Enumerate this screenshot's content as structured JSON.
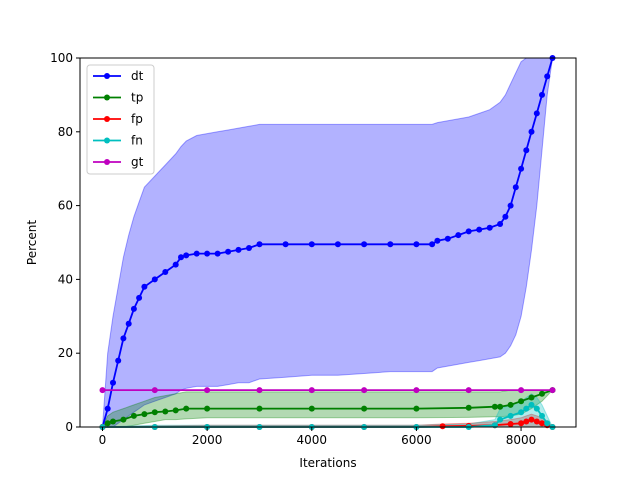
{
  "chart_data": {
    "type": "line",
    "title": "",
    "xlabel": "Iterations",
    "ylabel": "Percent",
    "xlim": [
      -430,
      9050
    ],
    "ylim": [
      0,
      100
    ],
    "xticks": [
      0,
      2000,
      4000,
      6000,
      8000
    ],
    "yticks": [
      0,
      20,
      40,
      60,
      80,
      100
    ],
    "legend_position": "top-left",
    "grid": false,
    "series": [
      {
        "name": "dt",
        "color": "#0000ff",
        "x": [
          0,
          100,
          200,
          300,
          400,
          500,
          600,
          700,
          800,
          1000,
          1200,
          1400,
          1500,
          1600,
          1800,
          2000,
          2200,
          2400,
          2600,
          2800,
          3000,
          3500,
          4000,
          4500,
          5000,
          5500,
          6000,
          6300,
          6400,
          6600,
          6800,
          7000,
          7200,
          7400,
          7600,
          7700,
          7800,
          7900,
          8000,
          8100,
          8200,
          8300,
          8400,
          8500,
          8600
        ],
        "y": [
          0,
          5,
          12,
          18,
          24,
          28,
          32,
          35,
          38,
          40,
          42,
          44,
          46,
          46.5,
          47,
          47,
          47,
          47.5,
          48,
          48.5,
          49.5,
          49.5,
          49.5,
          49.5,
          49.5,
          49.5,
          49.5,
          49.5,
          50.5,
          51,
          52,
          53,
          53.5,
          54,
          55,
          57,
          60,
          65,
          70,
          75,
          80,
          85,
          90,
          95,
          100
        ],
        "band_lower": [
          0,
          0,
          0,
          1,
          2,
          3,
          4,
          5,
          6,
          7,
          8,
          9,
          10,
          10.5,
          11,
          11,
          11,
          11.5,
          12,
          12,
          13,
          13.5,
          14,
          14,
          14.5,
          15,
          15,
          15,
          16,
          16.5,
          17,
          17.5,
          18,
          18.5,
          19,
          20,
          22,
          25,
          30,
          38,
          48,
          60,
          75,
          90,
          100
        ],
        "band_upper": [
          0,
          20,
          30,
          38,
          46,
          52,
          57,
          61,
          65,
          68,
          71,
          74,
          76,
          77.5,
          79,
          79.5,
          80,
          80.5,
          81,
          81.5,
          82,
          82,
          82,
          82,
          82,
          82,
          82,
          82,
          82.5,
          83,
          83.5,
          84,
          85,
          86,
          88,
          90,
          93,
          96,
          99,
          100,
          100,
          100,
          100,
          100,
          100
        ]
      },
      {
        "name": "tp",
        "color": "#008000",
        "x": [
          0,
          100,
          200,
          400,
          600,
          800,
          1000,
          1200,
          1400,
          1600,
          2000,
          3000,
          4000,
          5000,
          6000,
          7000,
          7500,
          7600,
          7800,
          8000,
          8200,
          8400,
          8600
        ],
        "y": [
          0,
          1,
          1.5,
          2,
          3,
          3.5,
          4,
          4.2,
          4.5,
          5,
          5,
          5,
          5,
          5,
          5,
          5.2,
          5.5,
          5.5,
          6,
          7,
          8,
          9,
          10
        ],
        "band_lower": [
          0,
          0,
          0,
          0,
          0.5,
          1,
          1.5,
          2,
          2,
          2.2,
          2.5,
          2.5,
          2.5,
          2.5,
          2.5,
          2.6,
          2.8,
          2.8,
          3,
          3.5,
          5,
          7,
          10
        ],
        "band_upper": [
          0,
          3,
          4,
          5,
          6,
          7,
          8,
          8.5,
          9,
          9.5,
          9.5,
          9.5,
          9.5,
          9.5,
          9.5,
          9.5,
          9.5,
          9.5,
          10,
          10,
          10,
          10,
          10
        ]
      },
      {
        "name": "fp",
        "color": "#ff0000",
        "x": [
          0,
          1000,
          2000,
          3000,
          4000,
          5000,
          6000,
          6500,
          7000,
          7500,
          7800,
          8000,
          8100,
          8200,
          8300,
          8400,
          8500,
          8600
        ],
        "y": [
          0,
          0,
          0,
          0,
          0,
          0,
          0,
          0.2,
          0.3,
          0.5,
          0.8,
          1,
          1.5,
          2,
          1.5,
          1,
          0.5,
          0
        ],
        "band_lower": [
          0,
          0,
          0,
          0,
          0,
          0,
          0,
          0,
          0,
          0,
          0,
          0,
          0,
          0,
          0,
          0,
          0,
          0
        ],
        "band_upper": [
          0,
          0.3,
          0.5,
          0.5,
          0.5,
          0.5,
          0.5,
          0.8,
          1,
          1.5,
          2,
          2.5,
          3,
          3.5,
          3,
          2.5,
          1.5,
          0
        ]
      },
      {
        "name": "fn",
        "color": "#00bfbf",
        "x": [
          0,
          1000,
          2000,
          3000,
          4000,
          5000,
          6000,
          7000,
          7500,
          7600,
          7800,
          8000,
          8100,
          8200,
          8300,
          8400,
          8500,
          8600
        ],
        "y": [
          0,
          0,
          0,
          0,
          0,
          0,
          0,
          0,
          0.5,
          2,
          3,
          4,
          5,
          6,
          5,
          3,
          1,
          0
        ],
        "band_lower": [
          0,
          0,
          0,
          0,
          0,
          0,
          0,
          0,
          0,
          0,
          0,
          0,
          0,
          0,
          0,
          0,
          0,
          0
        ],
        "band_upper": [
          0,
          0.5,
          0.5,
          0.5,
          0.5,
          0.5,
          0.5,
          0.8,
          2,
          5,
          6,
          7,
          8,
          9,
          8,
          6,
          3,
          0
        ]
      },
      {
        "name": "gt",
        "color": "#bf00bf",
        "x": [
          0,
          1000,
          2000,
          3000,
          4000,
          5000,
          6000,
          7000,
          8000,
          8600
        ],
        "y": [
          10,
          10,
          10,
          10,
          10,
          10,
          10,
          10,
          10,
          10
        ]
      }
    ]
  }
}
